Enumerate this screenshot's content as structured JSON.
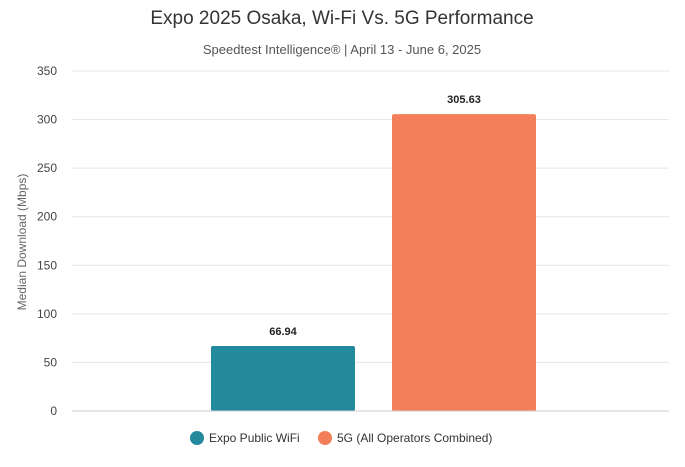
{
  "chart_data": {
    "type": "bar",
    "title": "Expo 2025 Osaka, Wi-Fi Vs. 5G Performance",
    "subtitle": "Speedtest Intelligence® | April 13 - June 6, 2025",
    "xlabel": "",
    "ylabel": "Median Download (Mbps)",
    "ylim": [
      0,
      350
    ],
    "yticks": [
      0,
      50,
      100,
      150,
      200,
      250,
      300,
      350
    ],
    "grid": true,
    "legend_position": "bottom",
    "categories": [
      "Expo Public WiFi",
      "5G (All Operators Combined)"
    ],
    "values": [
      66.94,
      305.63
    ],
    "value_labels": [
      "66.94",
      "305.63"
    ],
    "colors": [
      "#238a9d",
      "#f27e5a"
    ],
    "legend": [
      {
        "label": "Expo Public WiFi",
        "color": "#238a9d"
      },
      {
        "label": "5G (All Operators Combined)",
        "color": "#f27e5a"
      }
    ]
  }
}
